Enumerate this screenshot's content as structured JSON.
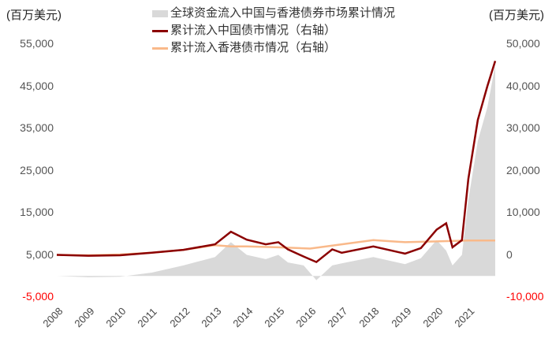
{
  "chart_data": {
    "type": "area+line",
    "title": "",
    "left_axis_unit": "(百万美元)",
    "right_axis_unit": "(百万美元)",
    "left_ticks": [
      "55,000",
      "45,000",
      "35,000",
      "25,000",
      "15,000",
      "5,000",
      "-5,000"
    ],
    "right_ticks": [
      "50,000",
      "40,000",
      "30,000",
      "20,000",
      "10,000",
      "0",
      "-10,000"
    ],
    "left_ylim": [
      -5000,
      55000
    ],
    "right_ylim": [
      -10000,
      50000
    ],
    "x_labels": [
      "2008",
      "2009",
      "2010",
      "2011",
      "2012",
      "2013",
      "2014",
      "2015",
      "2016",
      "2017",
      "2018",
      "2019",
      "2020",
      "2021"
    ],
    "legend": [
      {
        "name": "全球资金流入中国与香港债券市场累计情况",
        "type": "area",
        "color": "#d9d9d9",
        "axis": "left"
      },
      {
        "name": "累计流入中国债市情况（右轴）",
        "type": "line",
        "color": "#8b0000",
        "axis": "right"
      },
      {
        "name": "累计流入香港债市情况（右轴）",
        "type": "line",
        "color": "#f9b98a",
        "axis": "right"
      }
    ],
    "series": [
      {
        "name": "全球资金流入中国与香港债券市场累计情况",
        "axis": "left",
        "x": [
          2008,
          2009,
          2010,
          2011,
          2012,
          2013,
          2013.5,
          2014,
          2014.6,
          2015,
          2015.3,
          2015.8,
          2016.2,
          2016.7,
          2017,
          2018,
          2019,
          2019.5,
          2020,
          2020.3,
          2020.5,
          2020.8,
          2021,
          2021.3,
          2021.6,
          2021.85
        ],
        "values": [
          0,
          -300,
          -200,
          800,
          2500,
          4500,
          8000,
          5000,
          4000,
          5000,
          3200,
          2500,
          -1000,
          2500,
          3000,
          4500,
          2800,
          4200,
          8500,
          6000,
          2500,
          5000,
          18000,
          32000,
          40000,
          50000
        ]
      },
      {
        "name": "累计流入中国债市情况（右轴）",
        "axis": "right",
        "x": [
          2008,
          2009,
          2010,
          2011,
          2012,
          2013,
          2013.5,
          2014,
          2014.6,
          2015,
          2015.3,
          2015.8,
          2016.2,
          2016.7,
          2017,
          2018,
          2019,
          2019.5,
          2020,
          2020.3,
          2020.5,
          2020.8,
          2021,
          2021.3,
          2021.6,
          2021.85
        ],
        "values": [
          0,
          -200,
          -100,
          500,
          1200,
          2500,
          5500,
          3600,
          2500,
          3000,
          1300,
          -400,
          -1700,
          1300,
          500,
          2000,
          300,
          1600,
          6000,
          7500,
          1800,
          3500,
          18000,
          32000,
          40000,
          46000
        ]
      },
      {
        "name": "累计流入香港债市情况（右轴）",
        "axis": "right",
        "x": [
          2008,
          2009,
          2010,
          2011,
          2012,
          2013,
          2013.5,
          2014,
          2015,
          2016,
          2017,
          2018,
          2019,
          2020,
          2021,
          2021.85
        ],
        "values": [
          0,
          -100,
          100,
          500,
          1200,
          2300,
          2000,
          2000,
          1800,
          1500,
          2500,
          3500,
          3000,
          3200,
          3400,
          3400
        ]
      }
    ]
  },
  "labels": {
    "unit_left": "(百万美元)",
    "unit_right": "(百万美元)",
    "legend_area": "全球资金流入中国与香港债券市场累计情况",
    "legend_cn": "累计流入中国债市情况（右轴）",
    "legend_hk": "累计流入香港债市情况（右轴）"
  }
}
